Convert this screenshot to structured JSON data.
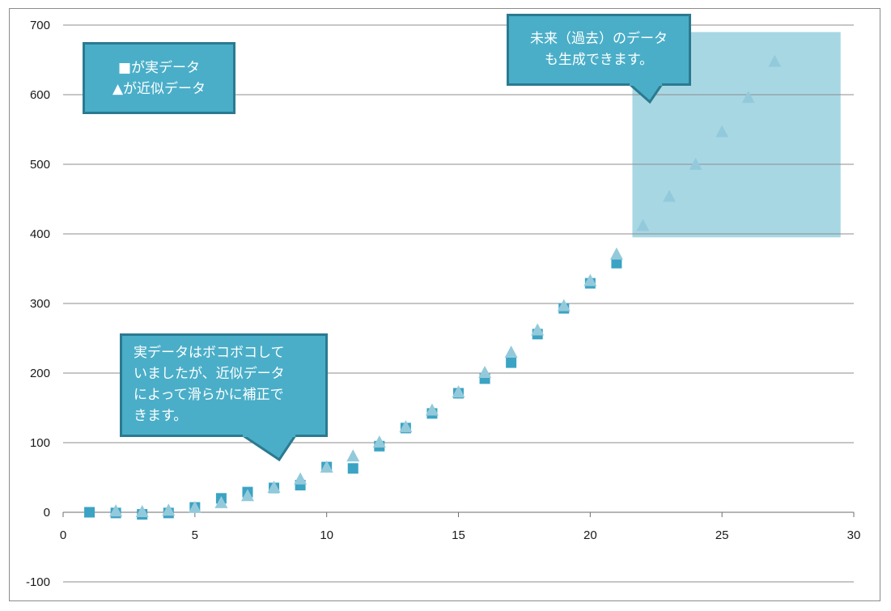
{
  "chart_data": {
    "type": "scatter",
    "title": "",
    "xlabel": "",
    "ylabel": "",
    "xlim": [
      0,
      30
    ],
    "ylim": [
      -100,
      700
    ],
    "x_ticks": [
      0,
      5,
      10,
      15,
      20,
      25,
      30
    ],
    "y_ticks": [
      -100,
      0,
      100,
      200,
      300,
      400,
      500,
      600,
      700
    ],
    "grid": "horizontal",
    "series": [
      {
        "marker": "square",
        "color": "#3ba3c3",
        "points": [
          [
            1,
            0
          ],
          [
            2,
            -1
          ],
          [
            3,
            -3
          ],
          [
            4,
            -1
          ],
          [
            5,
            7
          ],
          [
            6,
            20
          ],
          [
            7,
            29
          ],
          [
            8,
            35
          ],
          [
            9,
            39
          ],
          [
            10,
            65
          ],
          [
            11,
            63
          ],
          [
            12,
            95
          ],
          [
            13,
            121
          ],
          [
            14,
            142
          ],
          [
            15,
            171
          ],
          [
            16,
            192
          ],
          [
            17,
            215
          ],
          [
            18,
            256
          ],
          [
            19,
            293
          ],
          [
            20,
            329
          ],
          [
            21,
            358
          ]
        ]
      },
      {
        "marker": "triangle",
        "color": "#93cadb",
        "points": [
          [
            2,
            1
          ],
          [
            3,
            0
          ],
          [
            4,
            2
          ],
          [
            5,
            6
          ],
          [
            6,
            13
          ],
          [
            7,
            23
          ],
          [
            8,
            35
          ],
          [
            9,
            47
          ],
          [
            10,
            64
          ],
          [
            11,
            80
          ],
          [
            12,
            100
          ],
          [
            13,
            122
          ],
          [
            14,
            146
          ],
          [
            15,
            172
          ],
          [
            16,
            200
          ],
          [
            17,
            229
          ],
          [
            18,
            261
          ],
          [
            19,
            296
          ],
          [
            20,
            332
          ],
          [
            21,
            370
          ],
          [
            22,
            411
          ],
          [
            23,
            453
          ],
          [
            24,
            499
          ],
          [
            25,
            546
          ],
          [
            26,
            595
          ],
          [
            27,
            647
          ]
        ]
      }
    ],
    "highlight_region": {
      "x": [
        21.6,
        29.5
      ],
      "y": [
        395,
        690
      ],
      "color": "#a8d7e4"
    }
  },
  "legend_box": {
    "square_symbol": "■",
    "square_text": "が実データ",
    "triangle_symbol": "▲",
    "triangle_text": "が近似データ"
  },
  "callout_top": {
    "lines": [
      "未来（過去）のデータ",
      "も生成できます。"
    ]
  },
  "callout_bottom": {
    "lines": [
      "実データはボコボコして",
      "いましたが、近似データ",
      "によって滑らかに補正で",
      "きます。"
    ]
  },
  "colors": {
    "callout_fill": "#4aaec8",
    "callout_border": "#2b7a90",
    "gridline": "#8c8c8c"
  }
}
